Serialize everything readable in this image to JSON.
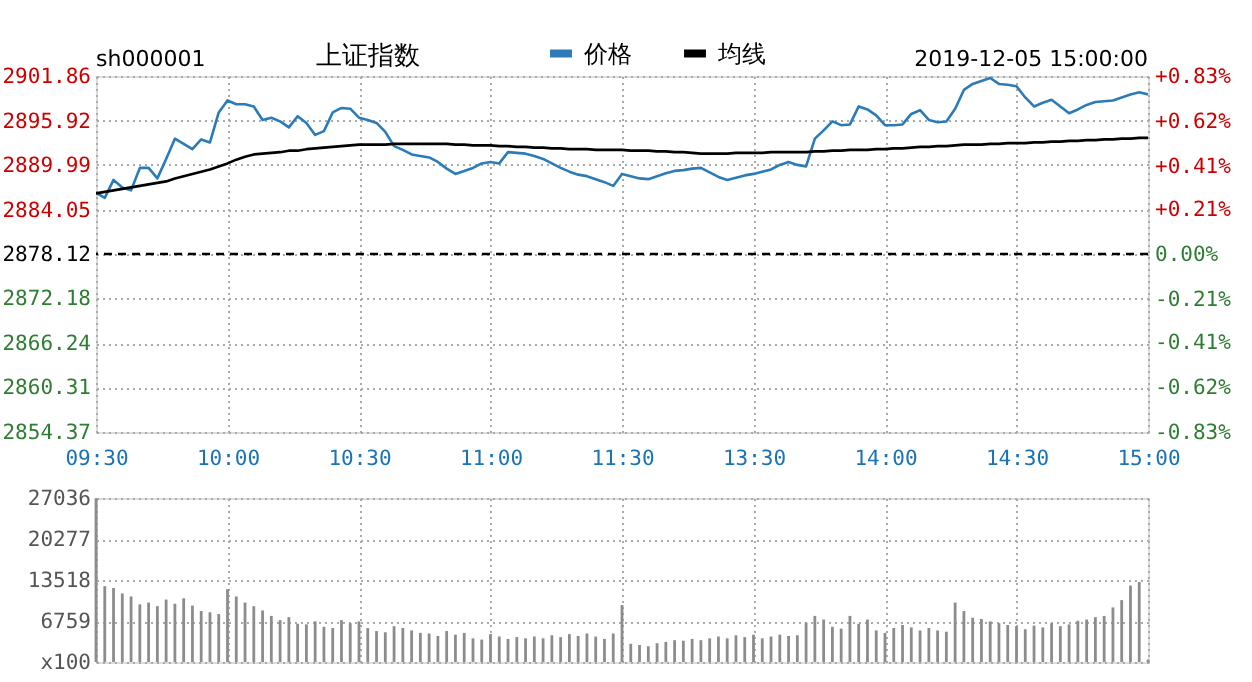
{
  "chart_data": [
    {
      "type": "line",
      "title": "上证指数",
      "subtitle": "sh000001",
      "annotations": [
        "2019-12-05 15:00:00"
      ],
      "legend": "top",
      "grid": true,
      "categories": [
        "09:30",
        null,
        null,
        null,
        null,
        null,
        null,
        null,
        null,
        null,
        null,
        null,
        null,
        null,
        null,
        "10:00",
        null,
        null,
        null,
        null,
        null,
        null,
        null,
        null,
        null,
        null,
        null,
        null,
        null,
        null,
        "10:30",
        null,
        null,
        null,
        null,
        null,
        null,
        null,
        null,
        null,
        null,
        null,
        null,
        null,
        null,
        "11:00",
        null,
        null,
        null,
        null,
        null,
        null,
        null,
        null,
        null,
        null,
        null,
        null,
        null,
        null,
        "11:30",
        null,
        null,
        null,
        null,
        null,
        null,
        null,
        null,
        null,
        null,
        null,
        null,
        null,
        null,
        "13:30",
        null,
        null,
        null,
        null,
        null,
        null,
        null,
        null,
        null,
        null,
        null,
        null,
        null,
        null,
        "14:00",
        null,
        null,
        null,
        null,
        null,
        null,
        null,
        null,
        null,
        null,
        null,
        null,
        null,
        null,
        "14:30",
        null,
        null,
        null,
        null,
        null,
        null,
        null,
        null,
        null,
        null,
        null,
        null,
        null,
        null,
        "15:00"
      ],
      "ylim": [
        2854.37,
        2901.86
      ],
      "yticks": [
        2854.37,
        2860.31,
        2866.24,
        2872.18,
        2878.12,
        2884.05,
        2889.99,
        2895.92,
        2901.86
      ],
      "y2lim": [
        -0.83,
        0.83
      ],
      "y2ticks": [
        {
          "value": -0.83,
          "label": "-0.83%"
        },
        {
          "value": -0.62,
          "label": "-0.62%"
        },
        {
          "value": -0.41,
          "label": "-0.41%"
        },
        {
          "value": -0.21,
          "label": "-0.21%"
        },
        {
          "value": 0,
          "label": "0.00%"
        },
        {
          "value": 0.21,
          "label": "+0.21%"
        },
        {
          "value": 0.41,
          "label": "+0.41%"
        },
        {
          "value": 0.62,
          "label": "+0.62%"
        },
        {
          "value": 0.83,
          "label": "+0.83%"
        }
      ],
      "ref_lines": [
        {
          "axis": "y",
          "value": 2878.12,
          "color": "#000000",
          "line_style": "dashed"
        }
      ],
      "series": [
        {
          "name": "价格",
          "color": "#2b7bb9",
          "values": [
            2886.3,
            2885.6,
            2888.0,
            2887.0,
            2886.6,
            2889.6,
            2889.6,
            2888.2,
            2890.8,
            2893.5,
            2892.8,
            2892.1,
            2893.4,
            2893.0,
            2897.0,
            2898.6,
            2898.1,
            2898.1,
            2897.8,
            2896.0,
            2896.3,
            2895.8,
            2895.0,
            2896.5,
            2895.6,
            2894.0,
            2894.5,
            2897.0,
            2897.6,
            2897.5,
            2896.3,
            2896.0,
            2895.6,
            2894.4,
            2892.5,
            2892.0,
            2891.4,
            2891.2,
            2891.0,
            2890.4,
            2889.5,
            2888.8,
            2889.2,
            2889.6,
            2890.2,
            2890.4,
            2890.2,
            2891.7,
            2891.6,
            2891.5,
            2891.2,
            2890.8,
            2890.2,
            2889.6,
            2889.1,
            2888.7,
            2888.5,
            2888.1,
            2887.7,
            2887.2,
            2888.8,
            2888.5,
            2888.2,
            2888.1,
            2888.5,
            2888.9,
            2889.2,
            2889.3,
            2889.5,
            2889.6,
            2889.0,
            2888.4,
            2888.0,
            2888.3,
            2888.6,
            2888.8,
            2889.1,
            2889.4,
            2890.0,
            2890.4,
            2890.0,
            2889.8,
            2893.5,
            2894.6,
            2895.8,
            2895.3,
            2895.4,
            2897.8,
            2897.4,
            2896.6,
            2895.3,
            2895.3,
            2895.4,
            2896.8,
            2897.3,
            2896.0,
            2895.7,
            2895.8,
            2897.5,
            2900.0,
            2900.8,
            2901.2,
            2901.6,
            2900.8,
            2900.7,
            2900.5,
            2899.0,
            2897.8,
            2898.3,
            2898.7,
            2897.8,
            2896.9,
            2897.4,
            2898.0,
            2898.4,
            2898.5,
            2898.6,
            2899.0,
            2899.4,
            2899.7,
            2899.4
          ]
        },
        {
          "name": "均线",
          "color": "#000000",
          "values": [
            2886.2,
            2886.4,
            2886.6,
            2886.8,
            2887.0,
            2887.2,
            2887.4,
            2887.6,
            2887.8,
            2888.2,
            2888.5,
            2888.8,
            2889.1,
            2889.4,
            2889.8,
            2890.2,
            2890.7,
            2891.1,
            2891.4,
            2891.5,
            2891.6,
            2891.7,
            2891.9,
            2891.9,
            2892.1,
            2892.2,
            2892.3,
            2892.4,
            2892.5,
            2892.6,
            2892.7,
            2892.7,
            2892.7,
            2892.7,
            2892.8,
            2892.8,
            2892.8,
            2892.8,
            2892.8,
            2892.8,
            2892.8,
            2892.7,
            2892.7,
            2892.6,
            2892.6,
            2892.6,
            2892.5,
            2892.5,
            2892.4,
            2892.4,
            2892.3,
            2892.3,
            2892.2,
            2892.2,
            2892.1,
            2892.1,
            2892.1,
            2892.0,
            2892.0,
            2892.0,
            2892.0,
            2891.9,
            2891.9,
            2891.9,
            2891.8,
            2891.8,
            2891.7,
            2891.7,
            2891.6,
            2891.5,
            2891.5,
            2891.5,
            2891.5,
            2891.6,
            2891.6,
            2891.6,
            2891.6,
            2891.7,
            2891.7,
            2891.7,
            2891.7,
            2891.7,
            2891.8,
            2891.8,
            2891.9,
            2891.9,
            2892.0,
            2892.0,
            2892.0,
            2892.1,
            2892.1,
            2892.2,
            2892.2,
            2892.3,
            2892.4,
            2892.4,
            2892.5,
            2892.5,
            2892.6,
            2892.7,
            2892.7,
            2892.7,
            2892.8,
            2892.8,
            2892.9,
            2892.9,
            2892.9,
            2893.0,
            2893.0,
            2893.1,
            2893.1,
            2893.2,
            2893.2,
            2893.3,
            2893.3,
            2893.4,
            2893.4,
            2893.5,
            2893.5,
            2893.6,
            2893.6
          ]
        }
      ]
    },
    {
      "type": "bar",
      "grid": true,
      "tick_labels": "y",
      "color": "#8c8c8c",
      "categories": [
        null,
        null,
        null,
        null,
        null,
        null,
        null,
        null,
        null,
        null,
        null,
        null,
        null,
        null,
        null,
        null,
        null,
        null,
        null,
        null,
        null,
        null,
        null,
        null,
        null,
        null,
        null,
        null,
        null,
        null,
        null,
        null,
        null,
        null,
        null,
        null,
        null,
        null,
        null,
        null,
        null,
        null,
        null,
        null,
        null,
        null,
        null,
        null,
        null,
        null,
        null,
        null,
        null,
        null,
        null,
        null,
        null,
        null,
        null,
        null,
        null,
        null,
        null,
        null,
        null,
        null,
        null,
        null,
        null,
        null,
        null,
        null,
        null,
        null,
        null,
        null,
        null,
        null,
        null,
        null,
        null,
        null,
        null,
        null,
        null,
        null,
        null,
        null,
        null,
        null,
        null,
        null,
        null,
        null,
        null,
        null,
        null,
        null,
        null,
        null,
        null,
        null,
        null,
        null,
        null,
        null,
        null,
        null,
        null,
        null,
        null,
        null,
        null,
        null,
        null,
        null,
        null,
        null,
        null,
        null,
        null
      ],
      "ylim": [
        0,
        27036
      ],
      "yticks": [
        {
          "value": 0,
          "label": "x100"
        },
        6759,
        13518,
        20277,
        27036
      ],
      "values": [
        27000,
        12500,
        12200,
        11300,
        10800,
        9500,
        9800,
        9200,
        10300,
        9600,
        10500,
        9300,
        8400,
        8200,
        7900,
        12000,
        10800,
        9800,
        9200,
        8500,
        7600,
        6900,
        7400,
        6300,
        6200,
        6700,
        5800,
        5600,
        6900,
        6400,
        6700,
        5600,
        5100,
        4900,
        5900,
        5600,
        5200,
        4800,
        4700,
        4300,
        5100,
        4500,
        4800,
        3900,
        3700,
        4600,
        4200,
        3800,
        4100,
        3900,
        4200,
        3900,
        4400,
        4100,
        4600,
        4300,
        4700,
        4200,
        3800,
        4700,
        9400,
        3000,
        2800,
        2600,
        3100,
        3300,
        3600,
        3500,
        3800,
        3600,
        3900,
        4200,
        3900,
        4400,
        4100,
        4500,
        3900,
        4200,
        4500,
        4300,
        4400,
        6500,
        7600,
        7000,
        5800,
        5500,
        7600,
        6300,
        7000,
        5200,
        4800,
        5600,
        6100,
        5700,
        5200,
        5600,
        5200,
        5000,
        9800,
        8400,
        7300,
        7100,
        6700,
        6400,
        6100,
        5900,
        5400,
        6000,
        5700,
        6400,
        5900,
        6200,
        6800,
        7000,
        7400,
        7600,
        9000,
        10200,
        12600,
        13200,
        400
      ]
    }
  ]
}
